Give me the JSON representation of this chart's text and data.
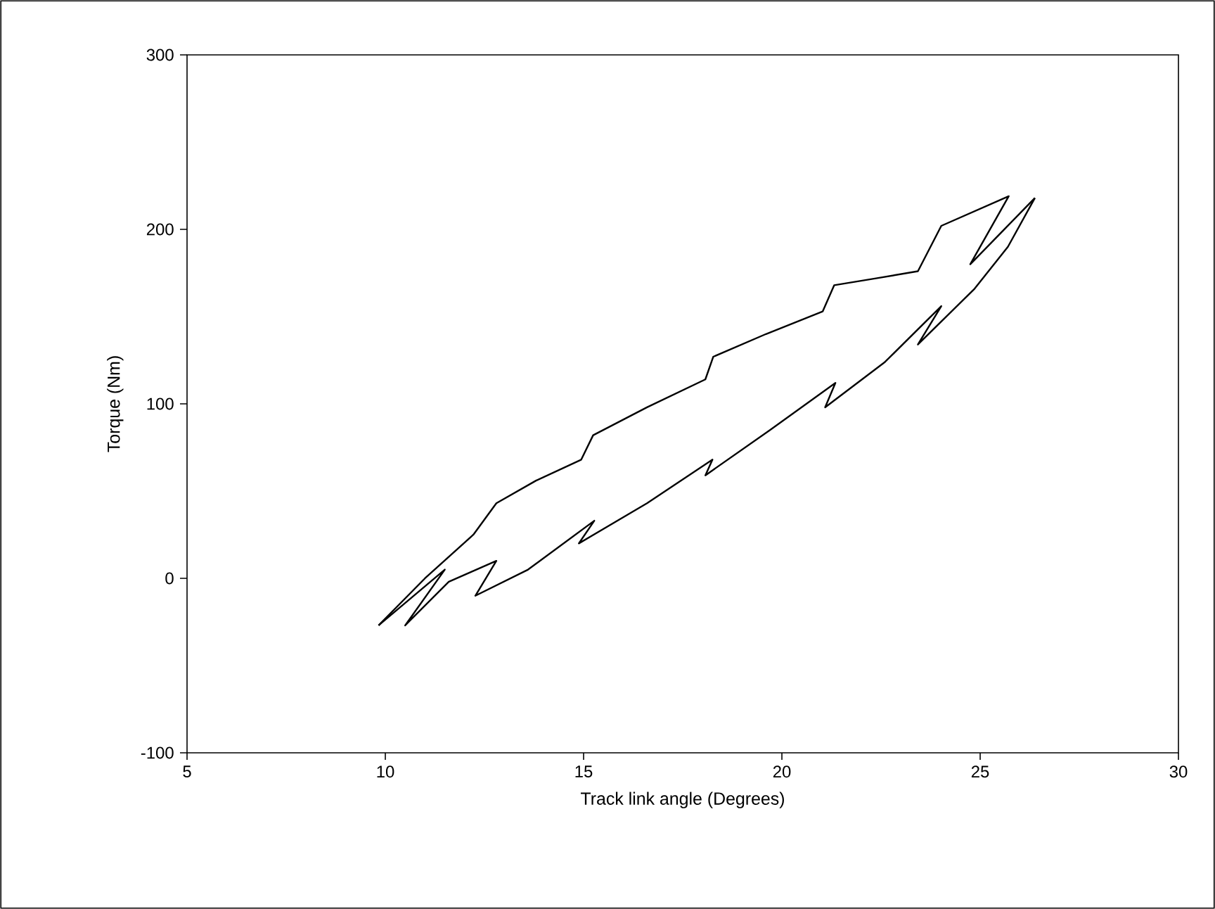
{
  "chart_data": {
    "type": "line",
    "xlabel": "Track link angle (Degrees)",
    "ylabel": "Torque (Nm)",
    "xlim": [
      5,
      30
    ],
    "xticks": [
      5,
      10,
      15,
      20,
      25,
      30
    ],
    "ylim": [
      -100,
      300
    ],
    "yticks": [
      -100,
      0,
      100,
      200,
      300
    ],
    "grid": false,
    "marker": "none",
    "line_style": "solid",
    "series": [
      {
        "color": "#000000",
        "x": [
          9.83,
          11.5,
          10.5,
          11.6,
          12.8,
          12.27,
          13.6,
          15.27,
          14.88,
          16.6,
          18.25,
          18.07,
          19.7,
          21.35,
          21.09,
          22.6,
          24.02,
          23.43,
          24.86,
          25.7,
          26.38
        ],
        "values": [
          -27,
          5,
          -27,
          -2,
          10,
          -10,
          5,
          33,
          20,
          43,
          68,
          59,
          85,
          112,
          98,
          124,
          156,
          134,
          166,
          190,
          218
        ]
      },
      {
        "color": "#000000",
        "x": [
          26.38,
          24.75,
          25.72,
          24.02,
          23.43,
          22.4,
          21.32,
          21.03,
          19.6,
          18.27,
          18.07,
          16.6,
          15.24,
          14.94,
          13.8,
          12.8,
          12.22,
          11.0,
          9.83
        ],
        "values": [
          218,
          180,
          219,
          202,
          176,
          172,
          168,
          153,
          140,
          127,
          114,
          98,
          82,
          68,
          56,
          43,
          25,
          0,
          -27
        ]
      }
    ]
  }
}
